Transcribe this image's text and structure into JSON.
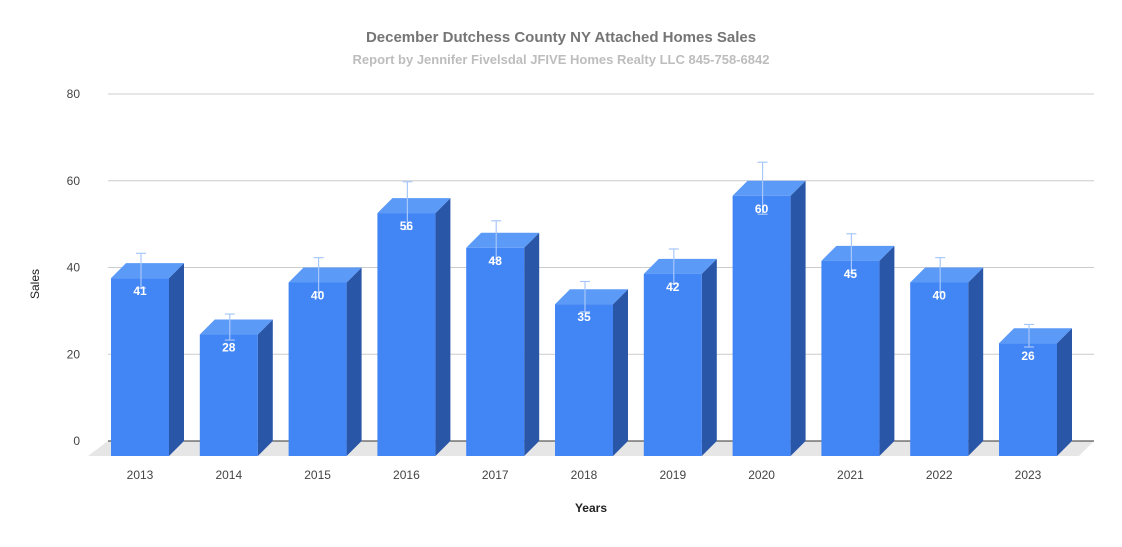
{
  "chart_data": {
    "type": "bar",
    "title": "December Dutchess County NY Attached Homes Sales",
    "subtitle": "Report by Jennifer Fivelsdal JFIVE Homes Realty LLC 845-758-6842",
    "xlabel": "Years",
    "ylabel": "Sales",
    "categories": [
      "2013",
      "2014",
      "2015",
      "2016",
      "2017",
      "2018",
      "2019",
      "2020",
      "2021",
      "2022",
      "2023"
    ],
    "values": [
      41,
      28,
      40,
      56,
      48,
      35,
      42,
      60,
      45,
      40,
      26
    ],
    "error_bars": [
      4,
      3,
      4,
      5.5,
      4.5,
      3.5,
      4,
      6,
      4.5,
      4,
      2.6
    ],
    "y_ticks": [
      0,
      20,
      40,
      60,
      80
    ],
    "ylim": [
      0,
      80
    ],
    "grid": true,
    "legend": false,
    "style": "3d-bar",
    "colors": {
      "bar_front": "#4285f4",
      "bar_side": "#2a56a8",
      "bar_top": "#5b9af7",
      "error_bar": "#a8c7fa",
      "grid": "#cccccc",
      "floor": "#e6e6e6",
      "title": "#757575",
      "subtitle": "#bdbdbd",
      "data_label": "#ffffff",
      "axis_text": "#444444"
    }
  }
}
